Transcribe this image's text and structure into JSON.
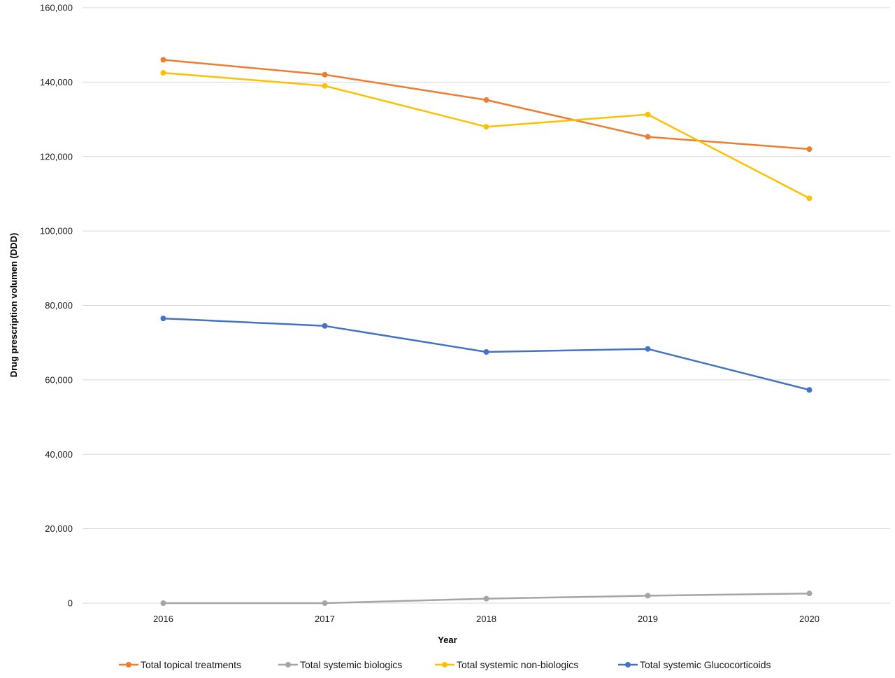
{
  "chart_data": {
    "type": "line",
    "title": "",
    "xlabel": "Year",
    "ylabel": "Drug prescription volumen (DDD)",
    "categories": [
      "2016",
      "2017",
      "2018",
      "2019",
      "2020"
    ],
    "ylim": [
      0,
      160000
    ],
    "yticks": [
      0,
      20000,
      40000,
      60000,
      80000,
      100000,
      120000,
      140000,
      160000
    ],
    "ytick_labels": [
      "0",
      "20,000",
      "40,000",
      "60,000",
      "80,000",
      "100,000",
      "120,000",
      "140,000",
      "160,000"
    ],
    "grid": true,
    "legend_position": "bottom",
    "series": [
      {
        "name": "Total topical treatments",
        "color": "#ED7D31",
        "values": [
          146000,
          142000,
          135200,
          125300,
          122000
        ]
      },
      {
        "name": "Total systemic biologics",
        "color": "#A5A5A5",
        "values": [
          0,
          0,
          1200,
          2000,
          2600
        ]
      },
      {
        "name": "Total systemic non-biologics",
        "color": "#FFC000",
        "values": [
          142500,
          139000,
          128000,
          131300,
          108800
        ]
      },
      {
        "name": "Total systemic Glucocorticoids",
        "color": "#4472C4",
        "values": [
          76500,
          74500,
          67500,
          68300,
          57300
        ]
      }
    ]
  }
}
